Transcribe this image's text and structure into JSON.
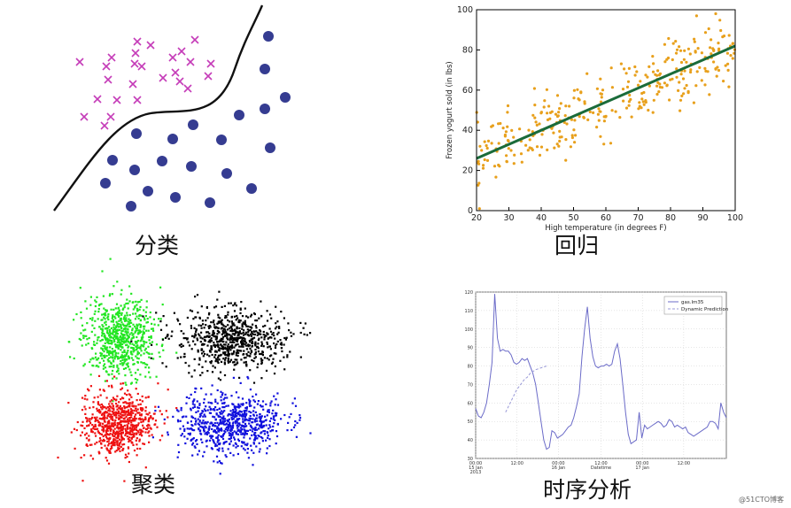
{
  "captions": {
    "classification": "分类",
    "regression": "回归",
    "clustering": "聚类",
    "time_series": "时序分析"
  },
  "watermark": "@51CTO博客",
  "colors": {
    "cross": "#c53cb8",
    "dot": "#353c91",
    "boundary": "#111111",
    "regression_points": "#e8a01c",
    "regression_line": "#1a6b3a",
    "cluster_green": "#22e622",
    "cluster_black": "#000000",
    "cluster_red": "#ee1111",
    "cluster_blue": "#1111dd",
    "ts_actual": "#6b6bc8",
    "ts_prediction": "#9a9ad8"
  },
  "chart_data": [
    {
      "type": "scatter",
      "xlabel": "High temperature (in degrees F)",
      "ylabel": "Frozen yogurt sold (in lbs)",
      "xlim": [
        20,
        100
      ],
      "ylim": [
        0,
        100
      ],
      "xticks": [
        "20",
        "30",
        "40",
        "50",
        "60",
        "70",
        "80",
        "90",
        "100"
      ],
      "yticks": [
        "0",
        "20",
        "40",
        "60",
        "80",
        "100"
      ],
      "grid": false,
      "fit_line": {
        "from": [
          20,
          26
        ],
        "to": [
          100,
          82
        ]
      },
      "points_trend": {
        "slope": 0.7,
        "intercept": 12,
        "spread": 12,
        "count": 320
      }
    },
    {
      "type": "line",
      "ylim": [
        30,
        120
      ],
      "yticks": [
        "30",
        "40",
        "50",
        "60",
        "70",
        "80",
        "90",
        "100",
        "110",
        "120"
      ],
      "xticks": [
        "00:00\n15 Jan\n2013",
        "12:00",
        "00:00\n16 Jan",
        "12:00",
        "00:00\n17 Jan",
        "12:00"
      ],
      "xlabel": "Datetime",
      "legend": [
        "gas.lm35",
        "Dynamic Prediction"
      ],
      "legend_position": "top-right",
      "grid": true,
      "series": [
        {
          "name": "gas.lm35",
          "values": [
            57,
            53,
            52,
            55,
            60,
            70,
            82,
            119,
            95,
            88,
            89,
            88,
            88,
            86,
            82,
            81,
            82,
            84,
            83,
            84,
            80,
            76,
            70,
            60,
            50,
            40,
            35,
            36,
            45,
            44,
            41,
            42,
            43,
            45,
            47,
            48,
            52,
            58,
            65,
            85,
            100,
            112,
            95,
            85,
            80,
            79,
            80,
            80,
            81,
            80,
            81,
            88,
            92,
            84,
            70,
            55,
            43,
            38,
            39,
            40,
            55,
            41,
            48,
            46,
            47,
            48,
            49,
            50,
            49,
            47,
            48,
            51,
            50,
            47,
            48,
            47,
            46,
            47,
            44,
            43,
            42,
            43,
            44,
            45,
            46,
            47,
            50,
            50,
            49,
            46,
            60,
            55,
            52
          ]
        },
        {
          "name": "Dynamic Prediction",
          "values": [
            null,
            null,
            null,
            null,
            null,
            null,
            null,
            null,
            null,
            null,
            null,
            55,
            58,
            61,
            64,
            67,
            69,
            71,
            73,
            74,
            76,
            77,
            78,
            78.5,
            79,
            79.5,
            80
          ]
        }
      ]
    }
  ]
}
